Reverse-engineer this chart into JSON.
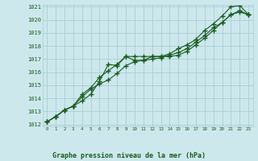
{
  "title": "Graphe pression niveau de la mer (hPa)",
  "bg_color": "#cce8ec",
  "grid_color": "#aacdd4",
  "line_color": "#1a5c20",
  "x_ticks": [
    0,
    1,
    2,
    3,
    4,
    5,
    6,
    7,
    8,
    9,
    10,
    11,
    12,
    13,
    14,
    15,
    16,
    17,
    18,
    19,
    20,
    21,
    22,
    23
  ],
  "y_min": 1012,
  "y_max": 1021,
  "y_ticks": [
    1012,
    1013,
    1014,
    1015,
    1016,
    1017,
    1018,
    1019,
    1020,
    1021
  ],
  "series1": [
    1012.2,
    1012.6,
    1013.1,
    1013.4,
    1013.8,
    1014.3,
    1015.3,
    1016.6,
    1016.5,
    1017.2,
    1016.9,
    1016.9,
    1017.2,
    1017.2,
    1017.4,
    1017.8,
    1018.1,
    1018.5,
    1019.2,
    1019.7,
    1020.3,
    1021.0,
    1021.1,
    1020.4
  ],
  "series2": [
    1012.2,
    1012.6,
    1013.1,
    1013.4,
    1014.1,
    1014.7,
    1015.1,
    1015.4,
    1015.9,
    1016.5,
    1016.8,
    1016.9,
    1017.0,
    1017.1,
    1017.3,
    1017.5,
    1017.8,
    1018.3,
    1018.8,
    1019.4,
    1019.8,
    1020.4,
    1020.6,
    1020.4
  ],
  "series3": [
    1012.2,
    1012.6,
    1013.1,
    1013.4,
    1014.3,
    1014.8,
    1015.6,
    1016.1,
    1016.6,
    1017.2,
    1017.2,
    1017.2,
    1017.2,
    1017.2,
    1017.2,
    1017.3,
    1017.6,
    1018.1,
    1018.6,
    1019.2,
    1019.8,
    1020.4,
    1020.7,
    1020.4
  ]
}
